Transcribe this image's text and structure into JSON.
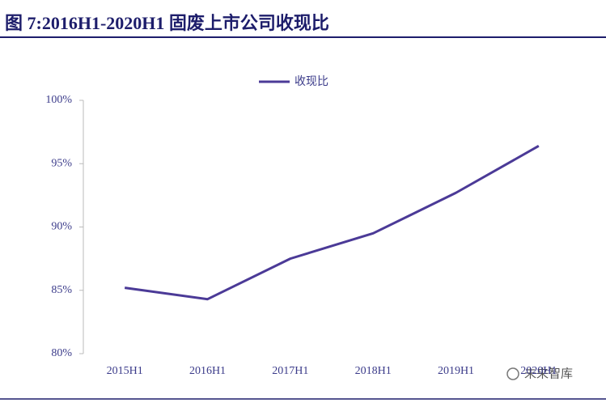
{
  "chart_data": {
    "type": "line",
    "title": "图 7:2016H1-2020H1 固废上市公司收现比",
    "categories": [
      "2015H1",
      "2016H1",
      "2017H1",
      "2018H1",
      "2019H1",
      "2020H1"
    ],
    "series": [
      {
        "name": "收现比",
        "color": "#4b3a97",
        "values": [
          85.2,
          84.3,
          87.5,
          89.5,
          92.7,
          96.4
        ]
      }
    ],
    "ylim": [
      80,
      100
    ],
    "yticks": [
      {
        "value": 80,
        "label": "80%"
      },
      {
        "value": 85,
        "label": "85%"
      },
      {
        "value": 90,
        "label": "90%"
      },
      {
        "value": 95,
        "label": "95%"
      },
      {
        "value": 100,
        "label": "100%"
      }
    ],
    "grid": false,
    "legend": "top",
    "watermark": "未来智库"
  }
}
